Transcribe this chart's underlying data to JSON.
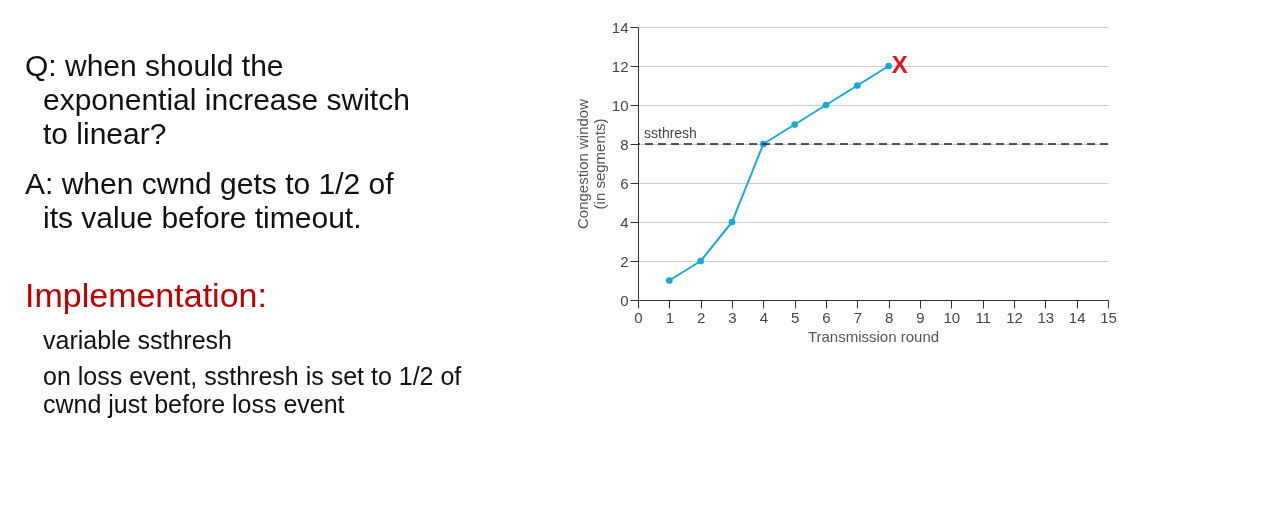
{
  "chart_data": {
    "type": "line",
    "xlabel": "Transmission round",
    "ylabel": "Congestion window (in segments)",
    "x": [
      1,
      2,
      3,
      4,
      5,
      6,
      7,
      8
    ],
    "series": [
      {
        "color": "#1ba7dd",
        "values": [
          1,
          2,
          4,
          8,
          9,
          10,
          11,
          12
        ]
      }
    ],
    "xlim": [
      0,
      15
    ],
    "xticks": [
      0,
      1,
      2,
      3,
      4,
      5,
      6,
      7,
      8,
      9,
      10,
      11,
      12,
      13,
      14,
      15
    ],
    "ylim": [
      0,
      14
    ],
    "yticks": [
      0,
      2,
      4,
      6,
      8,
      10,
      12,
      14
    ],
    "grid": "y",
    "marker": "circle",
    "line_style": "solid",
    "ref_lines": [
      {
        "axis": "y",
        "value": 8,
        "label": "ssthresh",
        "line_style": "dashed",
        "color": "#222222"
      }
    ],
    "annotations": [
      {
        "text": "X",
        "x": 8,
        "y": 12
      },
      "Q: when should the exponential increase switch to linear?",
      "A: when cwnd gets to 1/2 of its value before timeout.",
      "Implementation:",
      "variable ssthresh",
      "on loss event, ssthresh is set to 1/2 of cwnd just before loss event"
    ]
  }
}
